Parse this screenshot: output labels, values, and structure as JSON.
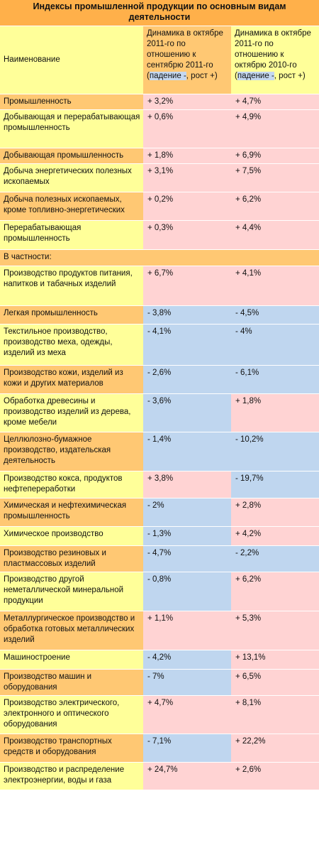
{
  "title": "Индексы промышленной продукции по основным видам деятельности",
  "header": {
    "name": "Наименование",
    "col2_main": "Динамика в октябре 2011-го по отношению к сентябрю 2011-го",
    "col3_main": "Динамика в октябре 2011-го по отношению к октябрю 2010-го",
    "legend_open": "(",
    "legend_fall": "падение -",
    "legend_sep": ", ",
    "legend_rise": "рост +",
    "legend_close": ")"
  },
  "rows": [
    {
      "name": "Промышленность",
      "m": "+ 3,2%",
      "y": "+ 4,7%"
    },
    {
      "name": "Добывающая и перерабатывающая промышленность",
      "m": "+ 0,6%",
      "y": "+ 4,9%"
    },
    {
      "name": "Добывающая промышленность",
      "m": "+ 1,8%",
      "y": "+ 6,9%"
    },
    {
      "name": "Добыча энергетических полезных ископаемых",
      "m": "+ 3,1%",
      "y": "+ 7,5%"
    },
    {
      "name": "Добыча полезных ископаемых, кроме топливно-энергетических",
      "m": "+ 0,2%",
      "y": "+ 6,2%"
    },
    {
      "name": "Перерабатывающая промышленность",
      "m": "+ 0,3%",
      "y": "+ 4,4%"
    }
  ],
  "section_label": "В частности:",
  "rows2": [
    {
      "name": "Производство продуктов питания, напитков и табачных изделий",
      "m": "+ 6,7%",
      "y": "+ 4,1%"
    },
    {
      "name": "Легкая промышленность",
      "m": "- 3,8%",
      "y": "- 4,5%"
    },
    {
      "name": "Текстильное производство, производство меха, одежды, изделий из меха",
      "m": "- 4,1%",
      "y": "- 4%"
    },
    {
      "name": "Производство кожи, изделий из кожи и других материалов",
      "m": "- 2,6%",
      "y": "- 6,1%"
    },
    {
      "name": "Обработка древесины и производство изделий из дерева, кроме мебели",
      "m": "- 3,6%",
      "y": "+ 1,8%"
    },
    {
      "name": "Целлюлозно-бумажное производство, издательская деятельность",
      "m": "- 1,4%",
      "y": "- 10,2%"
    },
    {
      "name": "Производство кокса, продуктов нефтепереработки",
      "m": "+ 3,8%",
      "y": "- 19,7%"
    },
    {
      "name": "Химическая и нефтехимическая промышленность",
      "m": "- 2%",
      "y": "+ 2,8%"
    },
    {
      "name": "Химическое производство",
      "m": "- 1,3%",
      "y": "+ 4,2%"
    },
    {
      "name": "Производство резиновых  и пластмассовых изделий",
      "m": "- 4,7%",
      "y": "- 2,2%"
    },
    {
      "name": "Производство другой неметаллической минеральной продукции",
      "m": "- 0,8%",
      "y": "+ 6,2%"
    },
    {
      "name": "Металлургическое производство и обработка готовых металлических изделий",
      "m": "+ 1,1%",
      "y": "+ 5,3%"
    },
    {
      "name": "Машиностроение",
      "m": "- 4,2%",
      "y": "+ 13,1%"
    },
    {
      "name": "Производство машин и оборудования",
      "m": "- 7%",
      "y": "+ 6,5%"
    },
    {
      "name": "Производство электрического, электронного и оптического оборудования",
      "m": "+ 4,7%",
      "y": "+ 8,1%"
    },
    {
      "name": "Производство транспортных средств и оборудования",
      "m": "- 7,1%",
      "y": "+ 22,2%"
    },
    {
      "name": "Производство и распределение электроэнергии, воды и газа",
      "m": "+ 24,7%",
      "y": "+ 2,6%"
    }
  ],
  "colors": {
    "title_bg": "#ffb04a",
    "yellow": "#ffff99",
    "orange": "#ffc873",
    "negative": "#bfd6ef",
    "positive": "#ffd3d3"
  }
}
